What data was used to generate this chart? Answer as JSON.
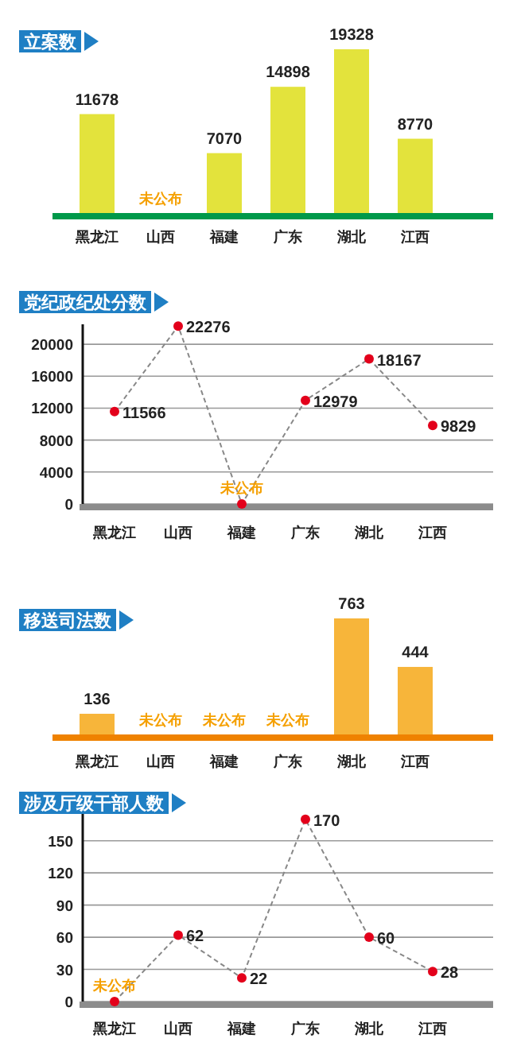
{
  "chart_data": [
    {
      "type": "bar",
      "title": "立案数",
      "categories": [
        "黑龙江",
        "山西",
        "福建",
        "广东",
        "湖北",
        "江西"
      ],
      "series": [
        {
          "color": "#e3e33c",
          "values": [
            11678,
            null,
            7070,
            14898,
            19328,
            8770
          ]
        }
      ],
      "data_labels": true,
      "annotations": [
        "未公布"
      ]
    },
    {
      "type": "line",
      "title": "党纪政纪处分数",
      "categories": [
        "黑龙江",
        "山西",
        "福建",
        "广东",
        "湖北",
        "江西"
      ],
      "series": [
        {
          "color": "#e3001b",
          "values": [
            11566,
            22276,
            0,
            12979,
            18167,
            9829
          ]
        }
      ],
      "value_labels": [
        "11566",
        "22276",
        "未公布",
        "12979",
        "18167",
        "9829"
      ],
      "ylim": [
        0,
        22500
      ],
      "yticks": [
        0,
        4000,
        8000,
        12000,
        16000,
        20000
      ],
      "grid": "y",
      "marker": "circle",
      "line_style": "dashed"
    },
    {
      "type": "bar",
      "title": "移送司法数",
      "categories": [
        "黑龙江",
        "山西",
        "福建",
        "广东",
        "湖北",
        "江西"
      ],
      "series": [
        {
          "color": "#f7b53a",
          "values": [
            136,
            null,
            null,
            null,
            763,
            444
          ]
        }
      ],
      "data_labels": true,
      "annotations": [
        "未公布",
        "未公布",
        "未公布"
      ]
    },
    {
      "type": "line",
      "title": "涉及厅级干部人数",
      "categories": [
        "黑龙江",
        "山西",
        "福建",
        "广东",
        "湖北",
        "江西"
      ],
      "series": [
        {
          "color": "#e3001b",
          "values": [
            0,
            62,
            22,
            170,
            60,
            28
          ]
        }
      ],
      "value_labels": [
        "未公布",
        "62",
        "22",
        "170",
        "60",
        "28"
      ],
      "ylim": [
        0,
        175
      ],
      "yticks": [
        0,
        30,
        60,
        90,
        120,
        150
      ],
      "grid": "y",
      "marker": "circle",
      "line_style": "dashed"
    }
  ]
}
